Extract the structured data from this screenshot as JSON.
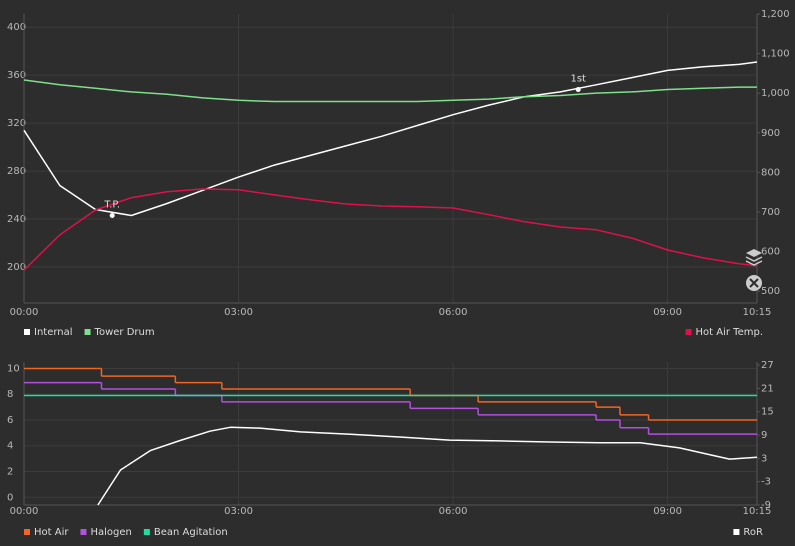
{
  "chart_data": [
    {
      "type": "line",
      "x": [
        0,
        30,
        60,
        90,
        120,
        150,
        180,
        210,
        240,
        270,
        300,
        330,
        360,
        390,
        420,
        450,
        480,
        510,
        540,
        570,
        600,
        615
      ],
      "xlim": [
        0,
        615
      ],
      "xticks": [
        {
          "value": 0,
          "label": "00:00"
        },
        {
          "value": 180,
          "label": "03:00"
        },
        {
          "value": 360,
          "label": "06:00"
        },
        {
          "value": 540,
          "label": "09:00"
        },
        {
          "value": 615,
          "label": "10:15"
        }
      ],
      "ylim": [
        170,
        411
      ],
      "yticks": [
        200,
        240,
        280,
        320,
        360,
        400
      ],
      "y2lim": [
        470,
        1200
      ],
      "y2ticks": [
        500,
        600,
        700,
        800,
        900,
        {
          "value": 1000,
          "label": "1,000"
        },
        {
          "value": 1100,
          "label": "1,100"
        },
        {
          "value": 1200,
          "label": "1,200"
        }
      ],
      "grid": true,
      "series": [
        {
          "name": "Internal",
          "color": "#ffffff",
          "legend": "left",
          "values": [
            314,
            268,
            248,
            243,
            253,
            264,
            275,
            285,
            293,
            301,
            309,
            318,
            327,
            335,
            342,
            346,
            352,
            358,
            364,
            367,
            369,
            371
          ]
        },
        {
          "name": "Tower Drum",
          "color": "#7ee08a",
          "legend": "left",
          "values": [
            356,
            352,
            349,
            346,
            344,
            341,
            339,
            338,
            338,
            338,
            338,
            338,
            339,
            340,
            342,
            343,
            345,
            346,
            348,
            349,
            350,
            350
          ]
        },
        {
          "name": "Hot Air Temp.",
          "color": "#e0104e",
          "legend": "right",
          "axis": "y2",
          "values": [
            553,
            642,
            705,
            736,
            751,
            758,
            756,
            743,
            731,
            720,
            715,
            713,
            710,
            693,
            675,
            662,
            655,
            634,
            604,
            584,
            569,
            564
          ]
        }
      ],
      "annotations": [
        {
          "text": "T.P.",
          "x": 74,
          "y": 243
        },
        {
          "text": "1st",
          "x": 465,
          "y": 348
        }
      ]
    },
    {
      "type": "line",
      "xlim": [
        0,
        615
      ],
      "xticks": [
        {
          "value": 0,
          "label": "00:00"
        },
        {
          "value": 180,
          "label": "03:00"
        },
        {
          "value": 360,
          "label": "06:00"
        },
        {
          "value": 540,
          "label": "09:00"
        },
        {
          "value": 615,
          "label": "10:15"
        }
      ],
      "ylim": [
        -0.6,
        10.5
      ],
      "yticks": [
        0,
        2,
        4,
        6,
        8,
        10
      ],
      "y2lim": [
        -9,
        27.8
      ],
      "y2ticks": [
        -9,
        -3,
        3,
        9,
        15,
        21,
        27
      ],
      "grid": true,
      "series": [
        {
          "name": "Hot Air",
          "color": "#f26522",
          "legend": "left",
          "step": true,
          "x": [
            0,
            65,
            127,
            166,
            324,
            381,
            480,
            500,
            524
          ],
          "values": [
            10,
            9.4,
            8.9,
            8.4,
            7.9,
            7.4,
            7,
            6.4,
            6
          ]
        },
        {
          "name": "Halogen",
          "color": "#b44fe0",
          "legend": "left",
          "step": true,
          "x": [
            0,
            65,
            127,
            166,
            324,
            381,
            480,
            500,
            524
          ],
          "values": [
            8.9,
            8.4,
            7.9,
            7.4,
            6.9,
            6.4,
            6,
            5.4,
            4.9
          ]
        },
        {
          "name": "Bean Agitation",
          "color": "#19e0a0",
          "legend": "left",
          "step": true,
          "x": [
            0
          ],
          "values": [
            7.9
          ]
        },
        {
          "name": "RoR",
          "color": "#ffffff",
          "legend": "right",
          "axis": "y2",
          "x": [
            62,
            81,
            106,
            131,
            156,
            173,
            198,
            232,
            274,
            315,
            357,
            399,
            441,
            483,
            517,
            550,
            576,
            592,
            615
          ],
          "values": [
            -9,
            0,
            5,
            7.6,
            10,
            11,
            10.8,
            9.8,
            9.2,
            8.5,
            7.7,
            7.5,
            7.2,
            7,
            7,
            5.7,
            3.9,
            2.8,
            3.3
          ]
        }
      ]
    }
  ]
}
